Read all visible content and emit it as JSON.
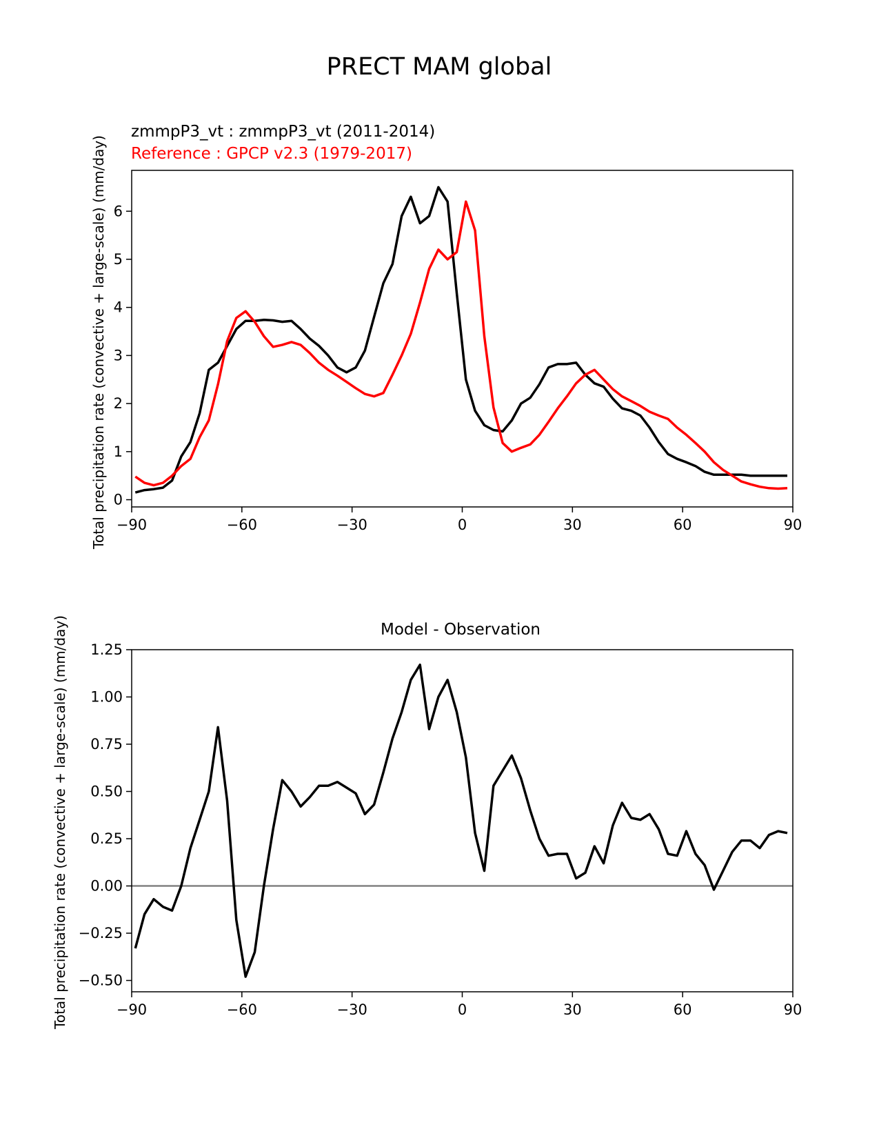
{
  "figure_title": "PRECT MAM global",
  "chart_data": [
    {
      "type": "line",
      "title": "",
      "subtitle_lines": [
        {
          "text": "zmmpP3_vt : zmmpP3_vt (2011-2014)",
          "color": "#000000"
        },
        {
          "text": "Reference : GPCP v2.3 (1979-2017)",
          "color": "#ff0000"
        }
      ],
      "xlabel": "",
      "ylabel": "Total precipitation rate (convective + large-scale) (mm/day)",
      "xlim": [
        -90,
        90
      ],
      "ylim": [
        -0.15,
        6.85
      ],
      "xticks": [
        -90,
        -60,
        -30,
        0,
        30,
        60,
        90
      ],
      "xtick_labels": [
        "−90",
        "−60",
        "−30",
        "0",
        "30",
        "60",
        "90"
      ],
      "yticks": [
        0,
        1,
        2,
        3,
        4,
        5,
        6
      ],
      "ytick_labels": [
        "0",
        "1",
        "2",
        "3",
        "4",
        "5",
        "6"
      ],
      "series": [
        {
          "name": "zmmpP3_vt",
          "color": "#000000",
          "x": [
            -89.0,
            -86.5,
            -84.0,
            -81.5,
            -79.0,
            -76.5,
            -74.0,
            -71.5,
            -69.0,
            -66.5,
            -64.0,
            -61.5,
            -59.0,
            -56.5,
            -54.0,
            -51.5,
            -49.0,
            -46.5,
            -44.0,
            -41.5,
            -39.0,
            -36.5,
            -34.0,
            -31.5,
            -29.0,
            -26.5,
            -24.0,
            -21.5,
            -19.0,
            -16.5,
            -14.0,
            -11.5,
            -9.0,
            -6.5,
            -4.0,
            -1.5,
            1.0,
            3.5,
            6.0,
            8.5,
            11.0,
            13.5,
            16.0,
            18.5,
            21.0,
            23.5,
            26.0,
            28.5,
            31.0,
            33.5,
            36.0,
            38.5,
            41.0,
            43.5,
            46.0,
            48.5,
            51.0,
            53.5,
            56.0,
            58.5,
            61.0,
            63.5,
            66.0,
            68.5,
            71.0,
            73.5,
            76.0,
            78.5,
            81.0,
            83.5,
            86.0,
            88.5
          ],
          "y": [
            0.15,
            0.2,
            0.22,
            0.25,
            0.4,
            0.9,
            1.2,
            1.8,
            2.7,
            2.85,
            3.2,
            3.55,
            3.72,
            3.72,
            3.74,
            3.73,
            3.7,
            3.72,
            3.55,
            3.35,
            3.2,
            3.0,
            2.75,
            2.65,
            2.75,
            3.1,
            3.8,
            4.5,
            4.9,
            5.9,
            6.3,
            5.75,
            5.9,
            6.5,
            6.2,
            4.3,
            2.5,
            1.85,
            1.55,
            1.45,
            1.42,
            1.65,
            2.0,
            2.12,
            2.4,
            2.75,
            2.82,
            2.82,
            2.85,
            2.6,
            2.42,
            2.35,
            2.1,
            1.9,
            1.85,
            1.75,
            1.5,
            1.2,
            0.95,
            0.85,
            0.78,
            0.7,
            0.58,
            0.52,
            0.52,
            0.52,
            0.52,
            0.5,
            0.5,
            0.5,
            0.5,
            0.5
          ]
        },
        {
          "name": "GPCP v2.3",
          "color": "#ff0000",
          "x": [
            -89.0,
            -86.5,
            -84.0,
            -81.5,
            -79.0,
            -76.5,
            -74.0,
            -71.5,
            -69.0,
            -66.5,
            -64.0,
            -61.5,
            -59.0,
            -56.5,
            -54.0,
            -51.5,
            -49.0,
            -46.5,
            -44.0,
            -41.5,
            -39.0,
            -36.5,
            -34.0,
            -31.5,
            -29.0,
            -26.5,
            -24.0,
            -21.5,
            -19.0,
            -16.5,
            -14.0,
            -11.5,
            -9.0,
            -6.5,
            -4.0,
            -1.5,
            1.0,
            3.5,
            6.0,
            8.5,
            11.0,
            13.5,
            16.0,
            18.5,
            21.0,
            23.5,
            26.0,
            28.5,
            31.0,
            33.5,
            36.0,
            38.5,
            41.0,
            43.5,
            46.0,
            48.5,
            51.0,
            53.5,
            56.0,
            58.5,
            61.0,
            63.5,
            66.0,
            68.5,
            71.0,
            73.5,
            76.0,
            78.5,
            81.0,
            83.5,
            86.0,
            88.5
          ],
          "y": [
            0.48,
            0.35,
            0.3,
            0.35,
            0.5,
            0.7,
            0.85,
            1.3,
            1.65,
            2.4,
            3.3,
            3.78,
            3.92,
            3.7,
            3.4,
            3.18,
            3.22,
            3.28,
            3.22,
            3.05,
            2.85,
            2.7,
            2.58,
            2.45,
            2.32,
            2.2,
            2.15,
            2.22,
            2.6,
            3.0,
            3.45,
            4.1,
            4.8,
            5.2,
            5.0,
            5.15,
            6.2,
            5.6,
            3.4,
            1.92,
            1.18,
            1.0,
            1.08,
            1.15,
            1.35,
            1.62,
            1.9,
            2.15,
            2.42,
            2.6,
            2.7,
            2.5,
            2.3,
            2.15,
            2.05,
            1.95,
            1.83,
            1.75,
            1.68,
            1.5,
            1.35,
            1.18,
            1.0,
            0.78,
            0.62,
            0.5,
            0.38,
            0.32,
            0.27,
            0.24,
            0.23,
            0.24
          ]
        }
      ]
    },
    {
      "type": "line",
      "title": "Model - Observation",
      "xlabel": "",
      "ylabel": "Total precipitation rate (convective + large-scale) (mm/day)",
      "xlim": [
        -90,
        90
      ],
      "ylim": [
        -0.56,
        1.25
      ],
      "xticks": [
        -90,
        -60,
        -30,
        0,
        30,
        60,
        90
      ],
      "xtick_labels": [
        "−90",
        "−60",
        "−30",
        "0",
        "30",
        "60",
        "90"
      ],
      "yticks": [
        -0.5,
        -0.25,
        0.0,
        0.25,
        0.5,
        0.75,
        1.0,
        1.25
      ],
      "ytick_labels": [
        "−0.50",
        "−0.25",
        "0.00",
        "0.25",
        "0.50",
        "0.75",
        "1.00",
        "1.25"
      ],
      "reference_line": {
        "y": 0,
        "color": "#808080"
      },
      "series": [
        {
          "name": "Model - Observation",
          "color": "#000000",
          "x": [
            -89.0,
            -86.5,
            -84.0,
            -81.5,
            -79.0,
            -76.5,
            -74.0,
            -71.5,
            -69.0,
            -66.5,
            -64.0,
            -61.5,
            -59.0,
            -56.5,
            -54.0,
            -51.5,
            -49.0,
            -46.5,
            -44.0,
            -41.5,
            -39.0,
            -36.5,
            -34.0,
            -31.5,
            -29.0,
            -26.5,
            -24.0,
            -21.5,
            -19.0,
            -16.5,
            -14.0,
            -11.5,
            -9.0,
            -6.5,
            -4.0,
            -1.5,
            1.0,
            3.5,
            6.0,
            8.5,
            11.0,
            13.5,
            16.0,
            18.5,
            21.0,
            23.5,
            26.0,
            28.5,
            31.0,
            33.5,
            36.0,
            38.5,
            41.0,
            43.5,
            46.0,
            48.5,
            51.0,
            53.5,
            56.0,
            58.5,
            61.0,
            63.5,
            66.0,
            68.5,
            71.0,
            73.5,
            76.0,
            78.5,
            81.0,
            83.5,
            86.0,
            88.5
          ],
          "y": [
            -0.33,
            -0.15,
            -0.07,
            -0.11,
            -0.13,
            0.0,
            0.2,
            0.35,
            0.5,
            0.84,
            0.45,
            -0.18,
            -0.48,
            -0.35,
            0.0,
            0.3,
            0.56,
            0.5,
            0.42,
            0.47,
            0.53,
            0.53,
            0.55,
            0.52,
            0.49,
            0.38,
            0.43,
            0.6,
            0.78,
            0.92,
            1.09,
            1.17,
            0.83,
            1.0,
            1.09,
            0.92,
            0.68,
            0.28,
            0.08,
            0.53,
            0.61,
            0.69,
            0.57,
            0.4,
            0.25,
            0.16,
            0.17,
            0.17,
            0.04,
            0.07,
            0.21,
            0.12,
            0.32,
            0.44,
            0.36,
            0.35,
            0.38,
            0.3,
            0.17,
            0.16,
            0.29,
            0.17,
            0.11,
            -0.02,
            0.08,
            0.18,
            0.24,
            0.24,
            0.2,
            0.27,
            0.29,
            0.28
          ]
        }
      ]
    }
  ]
}
